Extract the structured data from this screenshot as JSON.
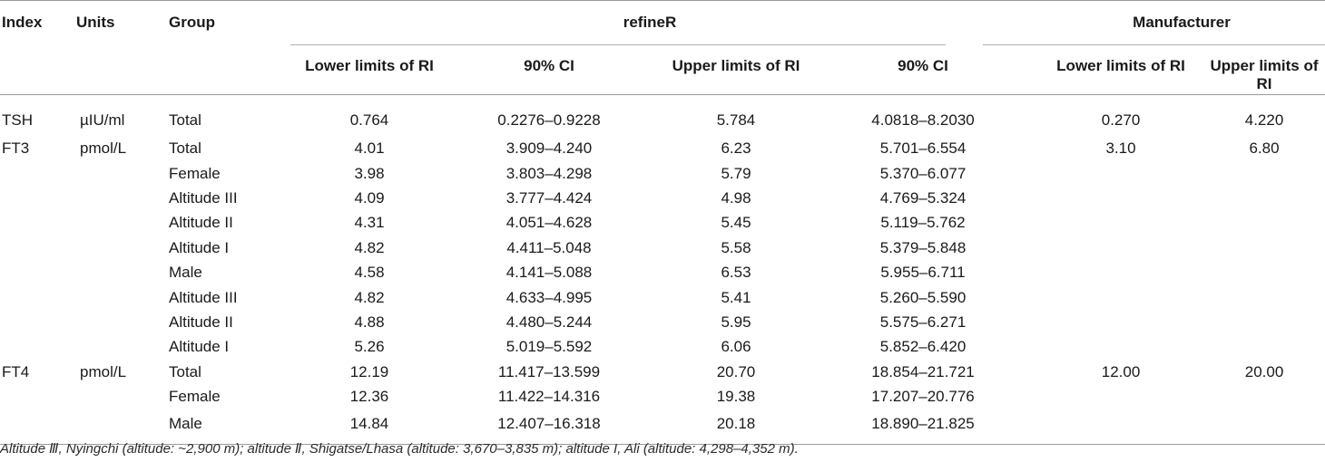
{
  "header": {
    "index": "Index",
    "units": "Units",
    "group": "Group",
    "refiner": "refineR",
    "manufacturer": "Manufacturer",
    "lower_ri": "Lower limits of RI",
    "ci1": "90% CI",
    "upper_ri": "Upper limits of RI",
    "ci2": "90% CI",
    "m_lower_ri": "Lower limits of RI",
    "m_upper_ri": "Upper limits of RI"
  },
  "rows": [
    {
      "index": "TSH",
      "units": "µIU/ml",
      "group": "Total",
      "lower": "0.764",
      "ci_lower": "0.2276–0.9228",
      "upper": "5.784",
      "ci_upper": "4.0818–8.2030",
      "m_lower": "0.270",
      "m_upper": "4.220"
    },
    {
      "index": "FT3",
      "units": "pmol/L",
      "group": "Total",
      "lower": "4.01",
      "ci_lower": "3.909–4.240",
      "upper": "6.23",
      "ci_upper": "5.701–6.554",
      "m_lower": "3.10",
      "m_upper": "6.80"
    },
    {
      "index": "",
      "units": "",
      "group": "Female",
      "lower": "3.98",
      "ci_lower": "3.803–4.298",
      "upper": "5.79",
      "ci_upper": "5.370–6.077",
      "m_lower": "",
      "m_upper": ""
    },
    {
      "index": "",
      "units": "",
      "group": "Altitude III",
      "lower": "4.09",
      "ci_lower": "3.777–4.424",
      "upper": "4.98",
      "ci_upper": "4.769–5.324",
      "m_lower": "",
      "m_upper": ""
    },
    {
      "index": "",
      "units": "",
      "group": "Altitude II",
      "lower": "4.31",
      "ci_lower": "4.051–4.628",
      "upper": "5.45",
      "ci_upper": "5.119–5.762",
      "m_lower": "",
      "m_upper": ""
    },
    {
      "index": "",
      "units": "",
      "group": "Altitude I",
      "lower": "4.82",
      "ci_lower": "4.411–5.048",
      "upper": "5.58",
      "ci_upper": "5.379–5.848",
      "m_lower": "",
      "m_upper": ""
    },
    {
      "index": "",
      "units": "",
      "group": "Male",
      "lower": "4.58",
      "ci_lower": "4.141–5.088",
      "upper": "6.53",
      "ci_upper": "5.955–6.711",
      "m_lower": "",
      "m_upper": ""
    },
    {
      "index": "",
      "units": "",
      "group": "Altitude III",
      "lower": "4.82",
      "ci_lower": "4.633–4.995",
      "upper": "5.41",
      "ci_upper": "5.260–5.590",
      "m_lower": "",
      "m_upper": ""
    },
    {
      "index": "",
      "units": "",
      "group": "Altitude II",
      "lower": "4.88",
      "ci_lower": "4.480–5.244",
      "upper": "5.95",
      "ci_upper": "5.575–6.271",
      "m_lower": "",
      "m_upper": ""
    },
    {
      "index": "",
      "units": "",
      "group": "Altitude I",
      "lower": "5.26",
      "ci_lower": "5.019–5.592",
      "upper": "6.06",
      "ci_upper": "5.852–6.420",
      "m_lower": "",
      "m_upper": ""
    },
    {
      "index": "FT4",
      "units": "pmol/L",
      "group": "Total",
      "lower": "12.19",
      "ci_lower": "11.417–13.599",
      "upper": "20.70",
      "ci_upper": "18.854–21.721",
      "m_lower": "12.00",
      "m_upper": "20.00"
    },
    {
      "index": "",
      "units": "",
      "group": "Female",
      "lower": "12.36",
      "ci_lower": "11.422–14.316",
      "upper": "19.38",
      "ci_upper": "17.207–20.776",
      "m_lower": "",
      "m_upper": ""
    },
    {
      "index": "",
      "units": "",
      "group": "Male",
      "lower": "14.84",
      "ci_lower": "12.407–16.318",
      "upper": "20.18",
      "ci_upper": "18.890–21.825",
      "m_lower": "",
      "m_upper": ""
    }
  ],
  "footnote": "Altitude Ⅲ, Nyingchi (altitude: ~2,900 m); altitude Ⅱ, Shigatse/Lhasa (altitude: 3,670–3,835 m); altitude I, Ali (altitude: 4,298–4,352 m)."
}
